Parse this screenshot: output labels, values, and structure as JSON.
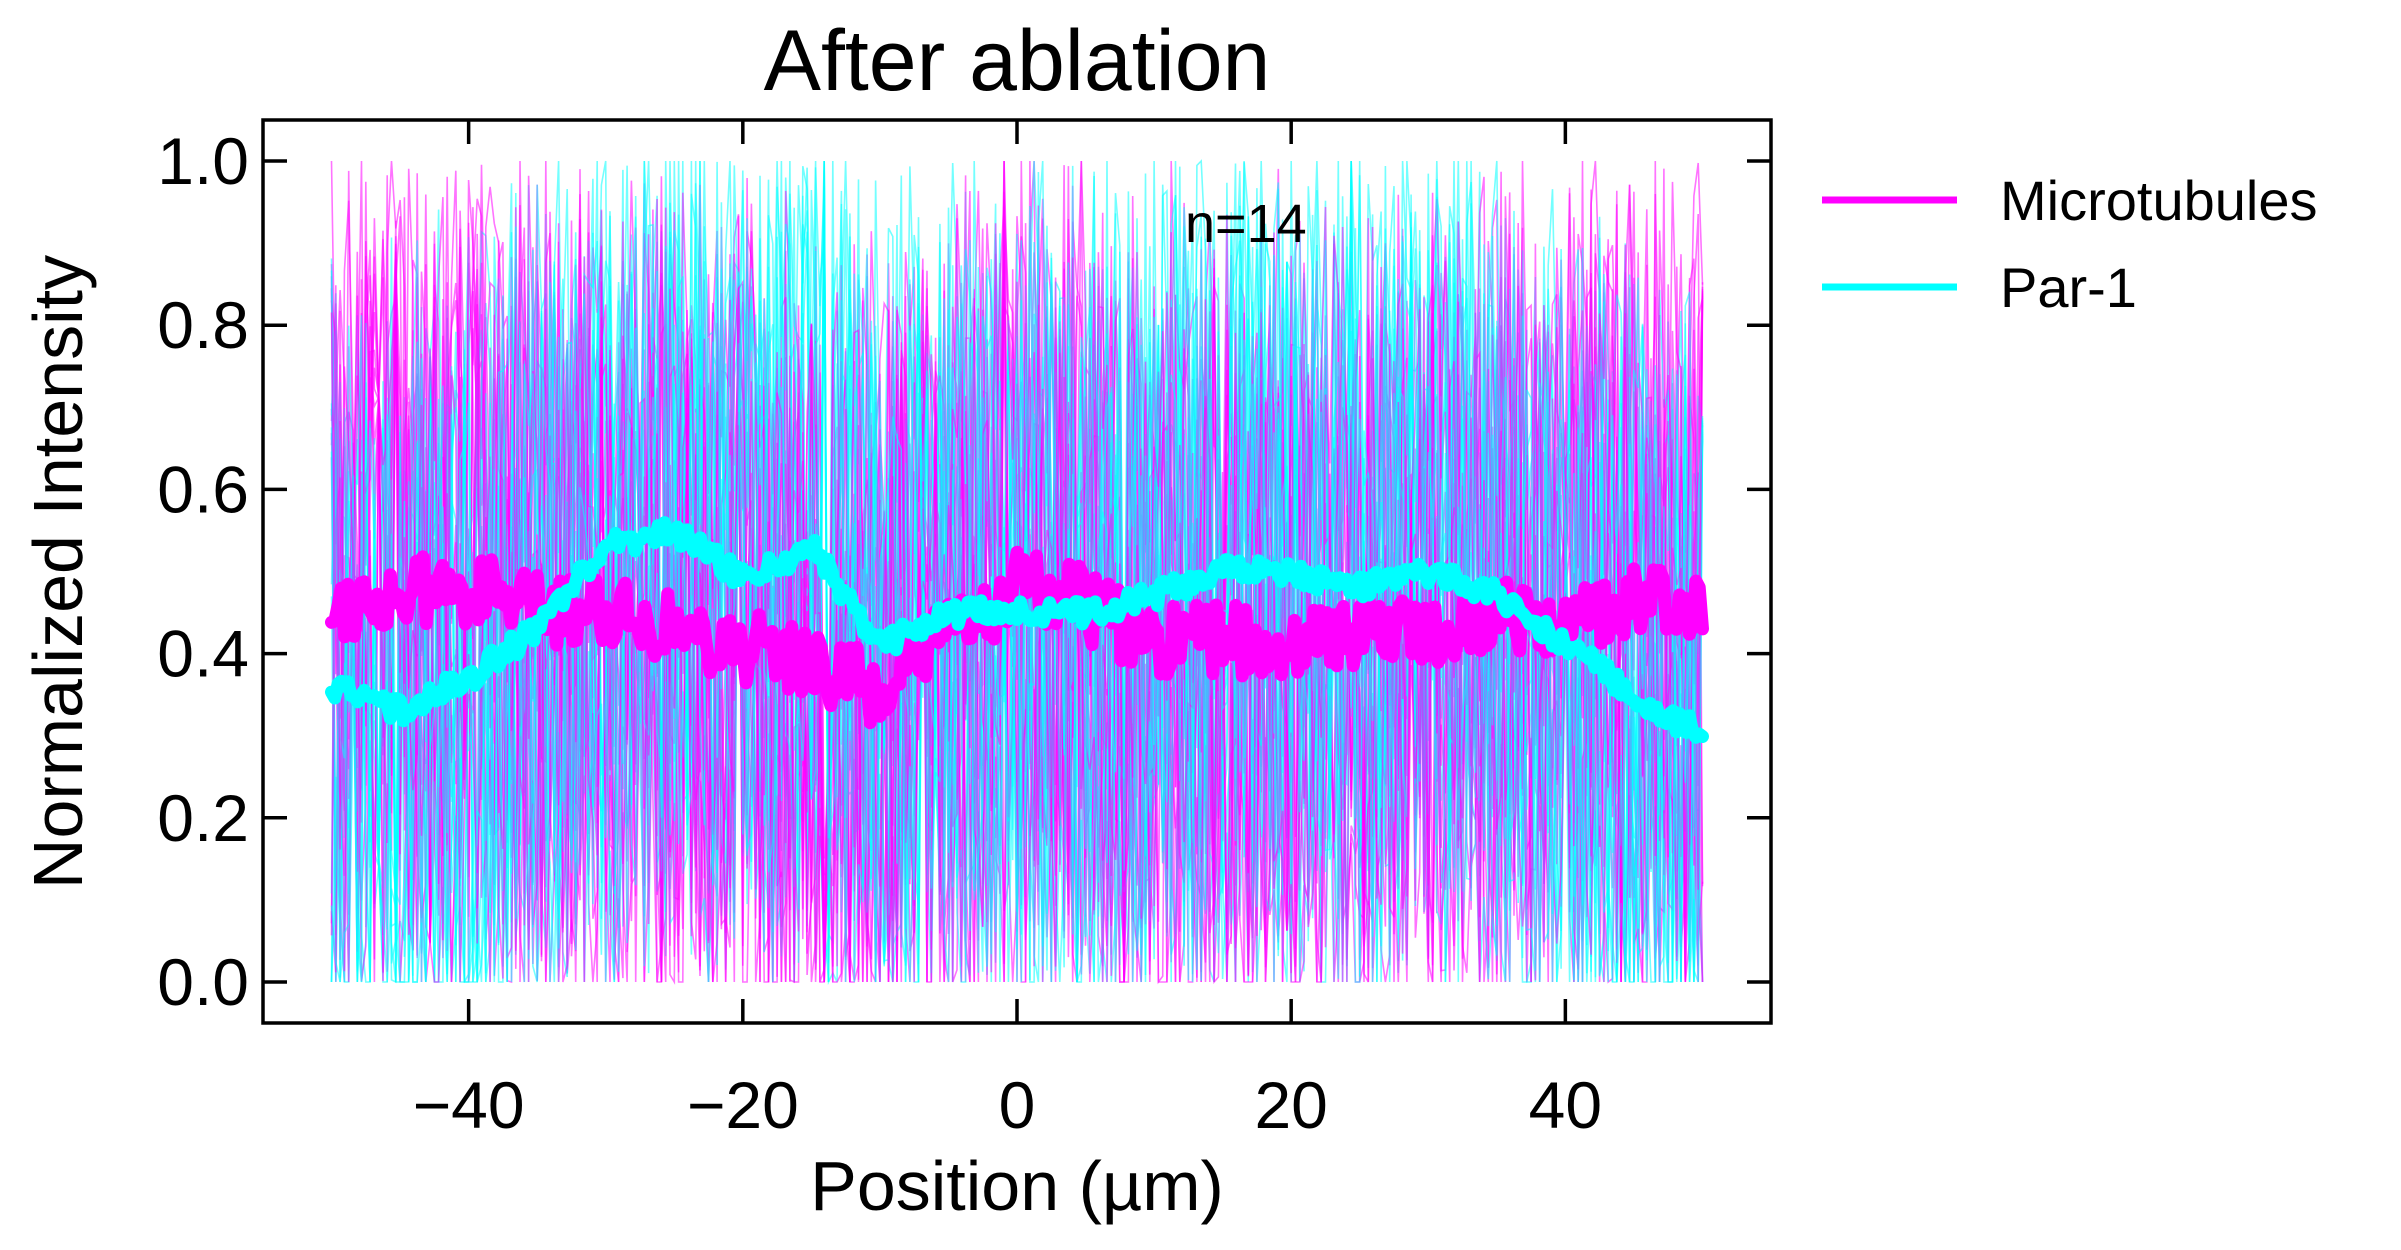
{
  "chart_data": {
    "type": "line",
    "title": "After ablation",
    "xlabel": "Position (µm)",
    "ylabel": "Normalized Intensity",
    "xlim": [
      -55,
      55
    ],
    "ylim": [
      -0.05,
      1.05
    ],
    "xticks": [
      -40,
      -20,
      0,
      20,
      40
    ],
    "xtick_labels": [
      "−40",
      "−20",
      "0",
      "20",
      "40"
    ],
    "yticks": [
      0.0,
      0.2,
      0.4,
      0.6,
      0.8,
      1.0
    ],
    "ytick_labels": [
      "0.0",
      "0.2",
      "0.4",
      "0.6",
      "0.8",
      "1.0"
    ],
    "annotation": "n=14",
    "grid": false,
    "legend_position": "outside-right",
    "colors": {
      "microtubules": "#ff00ff",
      "par1": "#00ffff"
    },
    "series": [
      {
        "name": "Microtubules",
        "color": "#ff00ff",
        "x": [
          -50,
          -45,
          -40,
          -35,
          -30,
          -25,
          -20,
          -15,
          -10,
          -5,
          0,
          5,
          10,
          15,
          20,
          25,
          30,
          35,
          40,
          45,
          50
        ],
        "values": [
          0.46,
          0.47,
          0.48,
          0.45,
          0.46,
          0.43,
          0.41,
          0.39,
          0.35,
          0.42,
          0.48,
          0.46,
          0.41,
          0.42,
          0.41,
          0.43,
          0.43,
          0.45,
          0.44,
          0.46,
          0.47
        ]
      },
      {
        "name": "Par-1",
        "color": "#00ffff",
        "x": [
          -50,
          -45,
          -40,
          -35,
          -30,
          -25,
          -20,
          -15,
          -10,
          -5,
          0,
          5,
          10,
          15,
          20,
          25,
          30,
          35,
          40,
          45,
          50
        ],
        "values": [
          0.36,
          0.33,
          0.37,
          0.43,
          0.53,
          0.55,
          0.49,
          0.53,
          0.41,
          0.45,
          0.45,
          0.45,
          0.47,
          0.5,
          0.5,
          0.48,
          0.5,
          0.47,
          0.41,
          0.35,
          0.3
        ]
      }
    ],
    "individual_traces": {
      "count_per_series": 14,
      "value_range": [
        0.0,
        1.0
      ],
      "opacity": 0.55
    }
  }
}
